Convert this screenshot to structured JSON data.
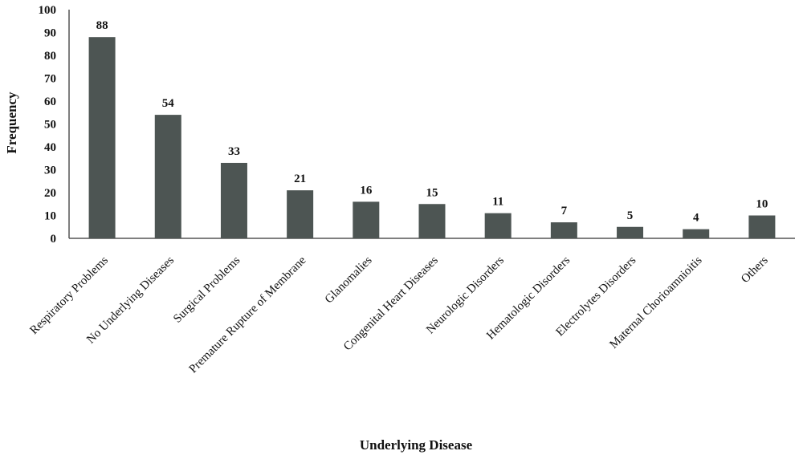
{
  "chart_data": {
    "type": "bar",
    "xlabel": "Underlying Disease",
    "ylabel": "Frequency",
    "ylim": [
      0,
      100
    ],
    "yticks": [
      0,
      10,
      20,
      30,
      40,
      50,
      60,
      70,
      80,
      90,
      100
    ],
    "grid": false,
    "bar_color": "#4d5553",
    "categories": [
      "Respiratory Problems",
      "No Underlying Diseases",
      "Surgical Problems",
      "Premature Rupture of Membrane",
      "Glanomalies",
      "Congenital Heart Diseases",
      "Neurologic Disorders",
      "Hematologic Disorders",
      "Electrolytes Disorders",
      "Maternal Chorioamnioitis",
      "Others"
    ],
    "values": [
      88,
      54,
      33,
      21,
      16,
      15,
      11,
      7,
      5,
      4,
      10
    ]
  }
}
